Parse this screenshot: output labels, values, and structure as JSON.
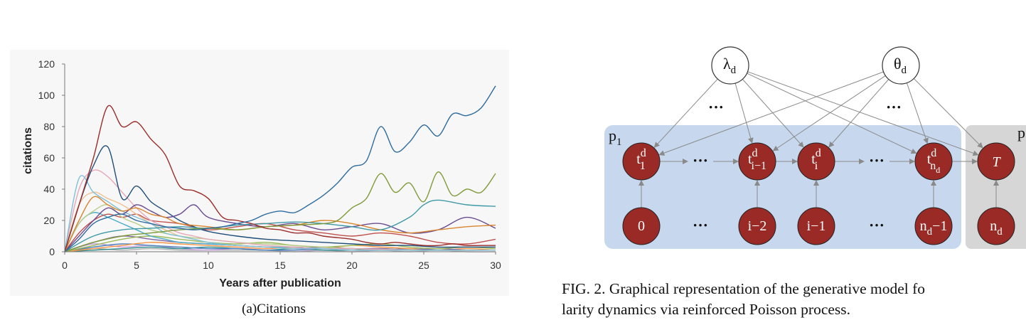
{
  "left_figure": {
    "caption": "(a)Citations",
    "chart_data": {
      "type": "line",
      "xlabel": "Years after publication",
      "ylabel": "citations",
      "xlim": [
        0,
        30
      ],
      "ylim": [
        0,
        120
      ],
      "xticks": [
        "0",
        "5",
        "10",
        "15",
        "20",
        "25",
        "30"
      ],
      "yticks": [
        "0",
        "20",
        "40",
        "60",
        "80",
        "100",
        "120"
      ],
      "grid": false,
      "legend": "none",
      "series": [
        {
          "color": "#2e6b9e",
          "x": [
            0,
            1,
            2,
            3,
            4,
            5,
            6,
            7,
            8,
            9,
            10,
            11,
            12,
            13,
            14,
            15,
            16,
            17,
            18,
            19,
            20,
            21,
            22,
            23,
            24,
            25,
            26,
            27,
            28,
            29,
            30
          ],
          "values": [
            0,
            8,
            18,
            22,
            24,
            20,
            18,
            16,
            15,
            14,
            15,
            16,
            18,
            20,
            24,
            26,
            25,
            30,
            36,
            44,
            54,
            58,
            80,
            64,
            70,
            81,
            74,
            88,
            87,
            92,
            106
          ]
        },
        {
          "color": "#9b2d2a",
          "x": [
            0,
            1,
            2,
            3,
            4,
            5,
            6,
            7,
            8,
            9,
            10,
            11,
            12,
            13,
            14,
            15,
            16,
            17,
            18,
            19,
            20,
            21,
            22,
            23,
            24,
            25,
            26,
            27,
            28,
            29,
            30
          ],
          "values": [
            0,
            30,
            60,
            93,
            80,
            83,
            72,
            62,
            42,
            39,
            34,
            22,
            20,
            18,
            15,
            14,
            12,
            12,
            10,
            9,
            8,
            6,
            5,
            6,
            5,
            4,
            4,
            5,
            4,
            4,
            4
          ]
        },
        {
          "color": "#7f9a3b",
          "x": [
            0,
            2,
            4,
            6,
            8,
            10,
            12,
            14,
            16,
            18,
            19,
            20,
            21,
            22,
            23,
            24,
            25,
            26,
            27,
            28,
            29,
            30
          ],
          "values": [
            0,
            6,
            10,
            12,
            14,
            15,
            14,
            16,
            17,
            18,
            20,
            28,
            34,
            50,
            38,
            44,
            32,
            51,
            36,
            40,
            38,
            50
          ]
        },
        {
          "color": "#3f9aa8",
          "x": [
            0,
            2,
            4,
            6,
            8,
            10,
            12,
            14,
            16,
            18,
            20,
            22,
            24,
            25,
            26,
            28,
            30
          ],
          "values": [
            0,
            10,
            14,
            15,
            16,
            15,
            17,
            18,
            19,
            18,
            16,
            14,
            22,
            30,
            33,
            30,
            29
          ]
        },
        {
          "color": "#d9852e",
          "x": [
            0,
            1,
            2,
            3,
            4,
            5,
            6,
            7,
            8,
            10,
            12,
            14,
            16,
            18,
            20,
            22,
            24,
            26,
            28,
            30
          ],
          "values": [
            0,
            20,
            35,
            30,
            26,
            28,
            24,
            22,
            18,
            16,
            14,
            16,
            17,
            20,
            18,
            14,
            12,
            14,
            16,
            17
          ]
        },
        {
          "color": "#6a4c93",
          "x": [
            0,
            1,
            2,
            3,
            4,
            5,
            6,
            7,
            8,
            9,
            10,
            12,
            14,
            16,
            18,
            20,
            22,
            24,
            26,
            28,
            30
          ],
          "values": [
            0,
            10,
            20,
            28,
            24,
            30,
            26,
            22,
            24,
            30,
            22,
            18,
            16,
            18,
            14,
            16,
            18,
            12,
            14,
            22,
            15
          ]
        },
        {
          "color": "#1f4e79",
          "x": [
            0,
            1,
            2,
            3,
            4,
            5,
            6,
            7,
            8,
            9,
            10,
            12,
            14,
            16,
            18,
            20,
            22,
            24,
            26,
            28,
            30
          ],
          "values": [
            0,
            30,
            55,
            67,
            34,
            42,
            32,
            26,
            20,
            16,
            13,
            10,
            8,
            7,
            6,
            5,
            4,
            4,
            3,
            3,
            3
          ]
        },
        {
          "color": "#7fc1d9",
          "x": [
            0,
            1,
            2,
            3,
            4,
            5,
            6,
            7,
            8,
            9,
            10,
            12,
            14,
            16,
            18,
            20,
            25,
            30
          ],
          "values": [
            0,
            47,
            38,
            32,
            26,
            22,
            18,
            12,
            10,
            8,
            6,
            4,
            3,
            2,
            2,
            1,
            1,
            1
          ]
        },
        {
          "color": "#e6a8b8",
          "x": [
            0,
            1,
            2,
            3,
            4,
            5,
            6,
            7,
            8,
            9,
            10,
            12,
            14,
            16,
            18,
            20,
            25,
            30
          ],
          "values": [
            0,
            40,
            52,
            48,
            38,
            28,
            20,
            16,
            12,
            10,
            8,
            6,
            4,
            3,
            2,
            2,
            1,
            1
          ]
        },
        {
          "color": "#f0c090",
          "x": [
            0,
            1,
            2,
            3,
            4,
            5,
            6,
            7,
            8,
            9,
            10,
            12,
            14,
            16,
            18,
            20,
            25,
            30
          ],
          "values": [
            0,
            30,
            38,
            34,
            30,
            24,
            18,
            14,
            10,
            8,
            6,
            4,
            3,
            2,
            2,
            1,
            1,
            1
          ]
        },
        {
          "color": "#b8cf8a",
          "x": [
            0,
            1,
            2,
            3,
            4,
            5,
            6,
            8,
            10,
            12,
            14,
            16,
            18,
            20,
            25,
            30
          ],
          "values": [
            0,
            18,
            26,
            30,
            22,
            18,
            14,
            10,
            8,
            6,
            5,
            4,
            3,
            2,
            1,
            1
          ]
        },
        {
          "color": "#c0504d",
          "x": [
            0,
            1,
            2,
            3,
            4,
            5,
            6,
            8,
            10,
            12,
            14,
            16,
            18,
            20,
            22,
            24,
            26,
            28,
            30
          ],
          "values": [
            0,
            12,
            20,
            24,
            22,
            24,
            20,
            18,
            14,
            16,
            18,
            14,
            12,
            10,
            12,
            10,
            6,
            5,
            8
          ]
        },
        {
          "color": "#4bacc6",
          "x": [
            0,
            1,
            2,
            3,
            4,
            5,
            6,
            7,
            8,
            10,
            12,
            14,
            16,
            18,
            20,
            25,
            30
          ],
          "values": [
            0,
            18,
            25,
            22,
            18,
            14,
            10,
            8,
            6,
            5,
            4,
            3,
            3,
            2,
            2,
            1,
            1
          ]
        },
        {
          "color": "#9bbb59",
          "x": [
            0,
            2,
            4,
            6,
            8,
            10,
            12,
            14,
            16,
            18,
            20,
            22,
            24,
            26,
            28,
            30
          ],
          "values": [
            0,
            4,
            8,
            10,
            8,
            6,
            5,
            6,
            4,
            3,
            4,
            5,
            3,
            2,
            3,
            2
          ]
        },
        {
          "color": "#8064a2",
          "x": [
            0,
            2,
            4,
            6,
            8,
            10,
            12,
            14,
            16,
            18,
            20,
            22,
            24,
            26,
            28,
            30
          ],
          "values": [
            0,
            6,
            10,
            8,
            6,
            5,
            4,
            3,
            2,
            3,
            2,
            2,
            1,
            2,
            1,
            1
          ]
        },
        {
          "color": "#f79646",
          "x": [
            0,
            2,
            4,
            6,
            8,
            10,
            12,
            14,
            16,
            18,
            20,
            22,
            24,
            26,
            28,
            30
          ],
          "values": [
            0,
            2,
            4,
            6,
            5,
            4,
            3,
            2,
            3,
            2,
            4,
            3,
            2,
            1,
            2,
            1
          ]
        },
        {
          "color": "#4f81bd",
          "x": [
            0,
            2,
            4,
            6,
            8,
            10,
            12,
            14,
            16,
            18,
            20,
            22,
            24,
            26,
            28,
            30
          ],
          "values": [
            0,
            3,
            5,
            4,
            3,
            2,
            2,
            1,
            1,
            2,
            1,
            1,
            2,
            1,
            1,
            1
          ]
        },
        {
          "color": "#2c8c8c",
          "x": [
            0,
            2,
            4,
            6,
            8,
            10,
            12,
            14,
            16,
            18,
            20,
            22,
            24,
            26,
            28,
            30
          ],
          "values": [
            0,
            1,
            2,
            3,
            2,
            3,
            2,
            1,
            2,
            1,
            1,
            2,
            1,
            1,
            1,
            1
          ]
        },
        {
          "color": "#c9a0dc",
          "x": [
            0,
            2,
            4,
            6,
            8,
            10,
            12,
            14,
            16,
            18,
            20,
            22,
            24,
            26,
            28,
            30
          ],
          "values": [
            0,
            5,
            3,
            4,
            2,
            1,
            2,
            1,
            1,
            1,
            1,
            1,
            1,
            1,
            1,
            1
          ]
        },
        {
          "color": "#b0b0b0",
          "x": [
            0,
            2,
            4,
            6,
            8,
            10,
            12,
            14,
            16,
            18,
            20,
            22,
            24,
            26,
            28,
            30
          ],
          "values": [
            0,
            2,
            1,
            2,
            1,
            1,
            1,
            1,
            0,
            1,
            0,
            1,
            0,
            1,
            0,
            0
          ]
        }
      ]
    }
  },
  "right_figure": {
    "param_nodes": [
      {
        "label": "λ",
        "sub": "d"
      },
      {
        "label": "θ",
        "sub": "d"
      }
    ],
    "dots_label": "···",
    "box_labels": {
      "left": "p",
      "left_sub": "1",
      "right": "p"
    },
    "top_nodes": [
      {
        "label": "t",
        "sup": "d",
        "sub": "1"
      },
      {
        "label": "···"
      },
      {
        "label": "t",
        "sup": "d",
        "sub": "i−1"
      },
      {
        "label": "t",
        "sup": "d",
        "sub": "i"
      },
      {
        "label": "···"
      },
      {
        "label": "t",
        "sup": "d",
        "sub": "n",
        "subsub": "d"
      },
      {
        "label": "T"
      }
    ],
    "bottom_nodes": [
      {
        "label": "0"
      },
      {
        "label": "···"
      },
      {
        "label": "i−2"
      },
      {
        "label": "i−1"
      },
      {
        "label": "···"
      },
      {
        "label": "n",
        "sub": "d",
        "tail": "−1"
      },
      {
        "label": "n",
        "sub": "d"
      }
    ],
    "caption_line1": "FIG. 2.  Graphical representation of the generative model fo",
    "caption_line2": "larity dynamics via reinforced Poisson process.",
    "colors": {
      "node_fill": "#9a2a25",
      "blue_box": "#c7d8ee",
      "gray_box": "#d6d6d6",
      "arrow": "#8a8a8a"
    }
  }
}
